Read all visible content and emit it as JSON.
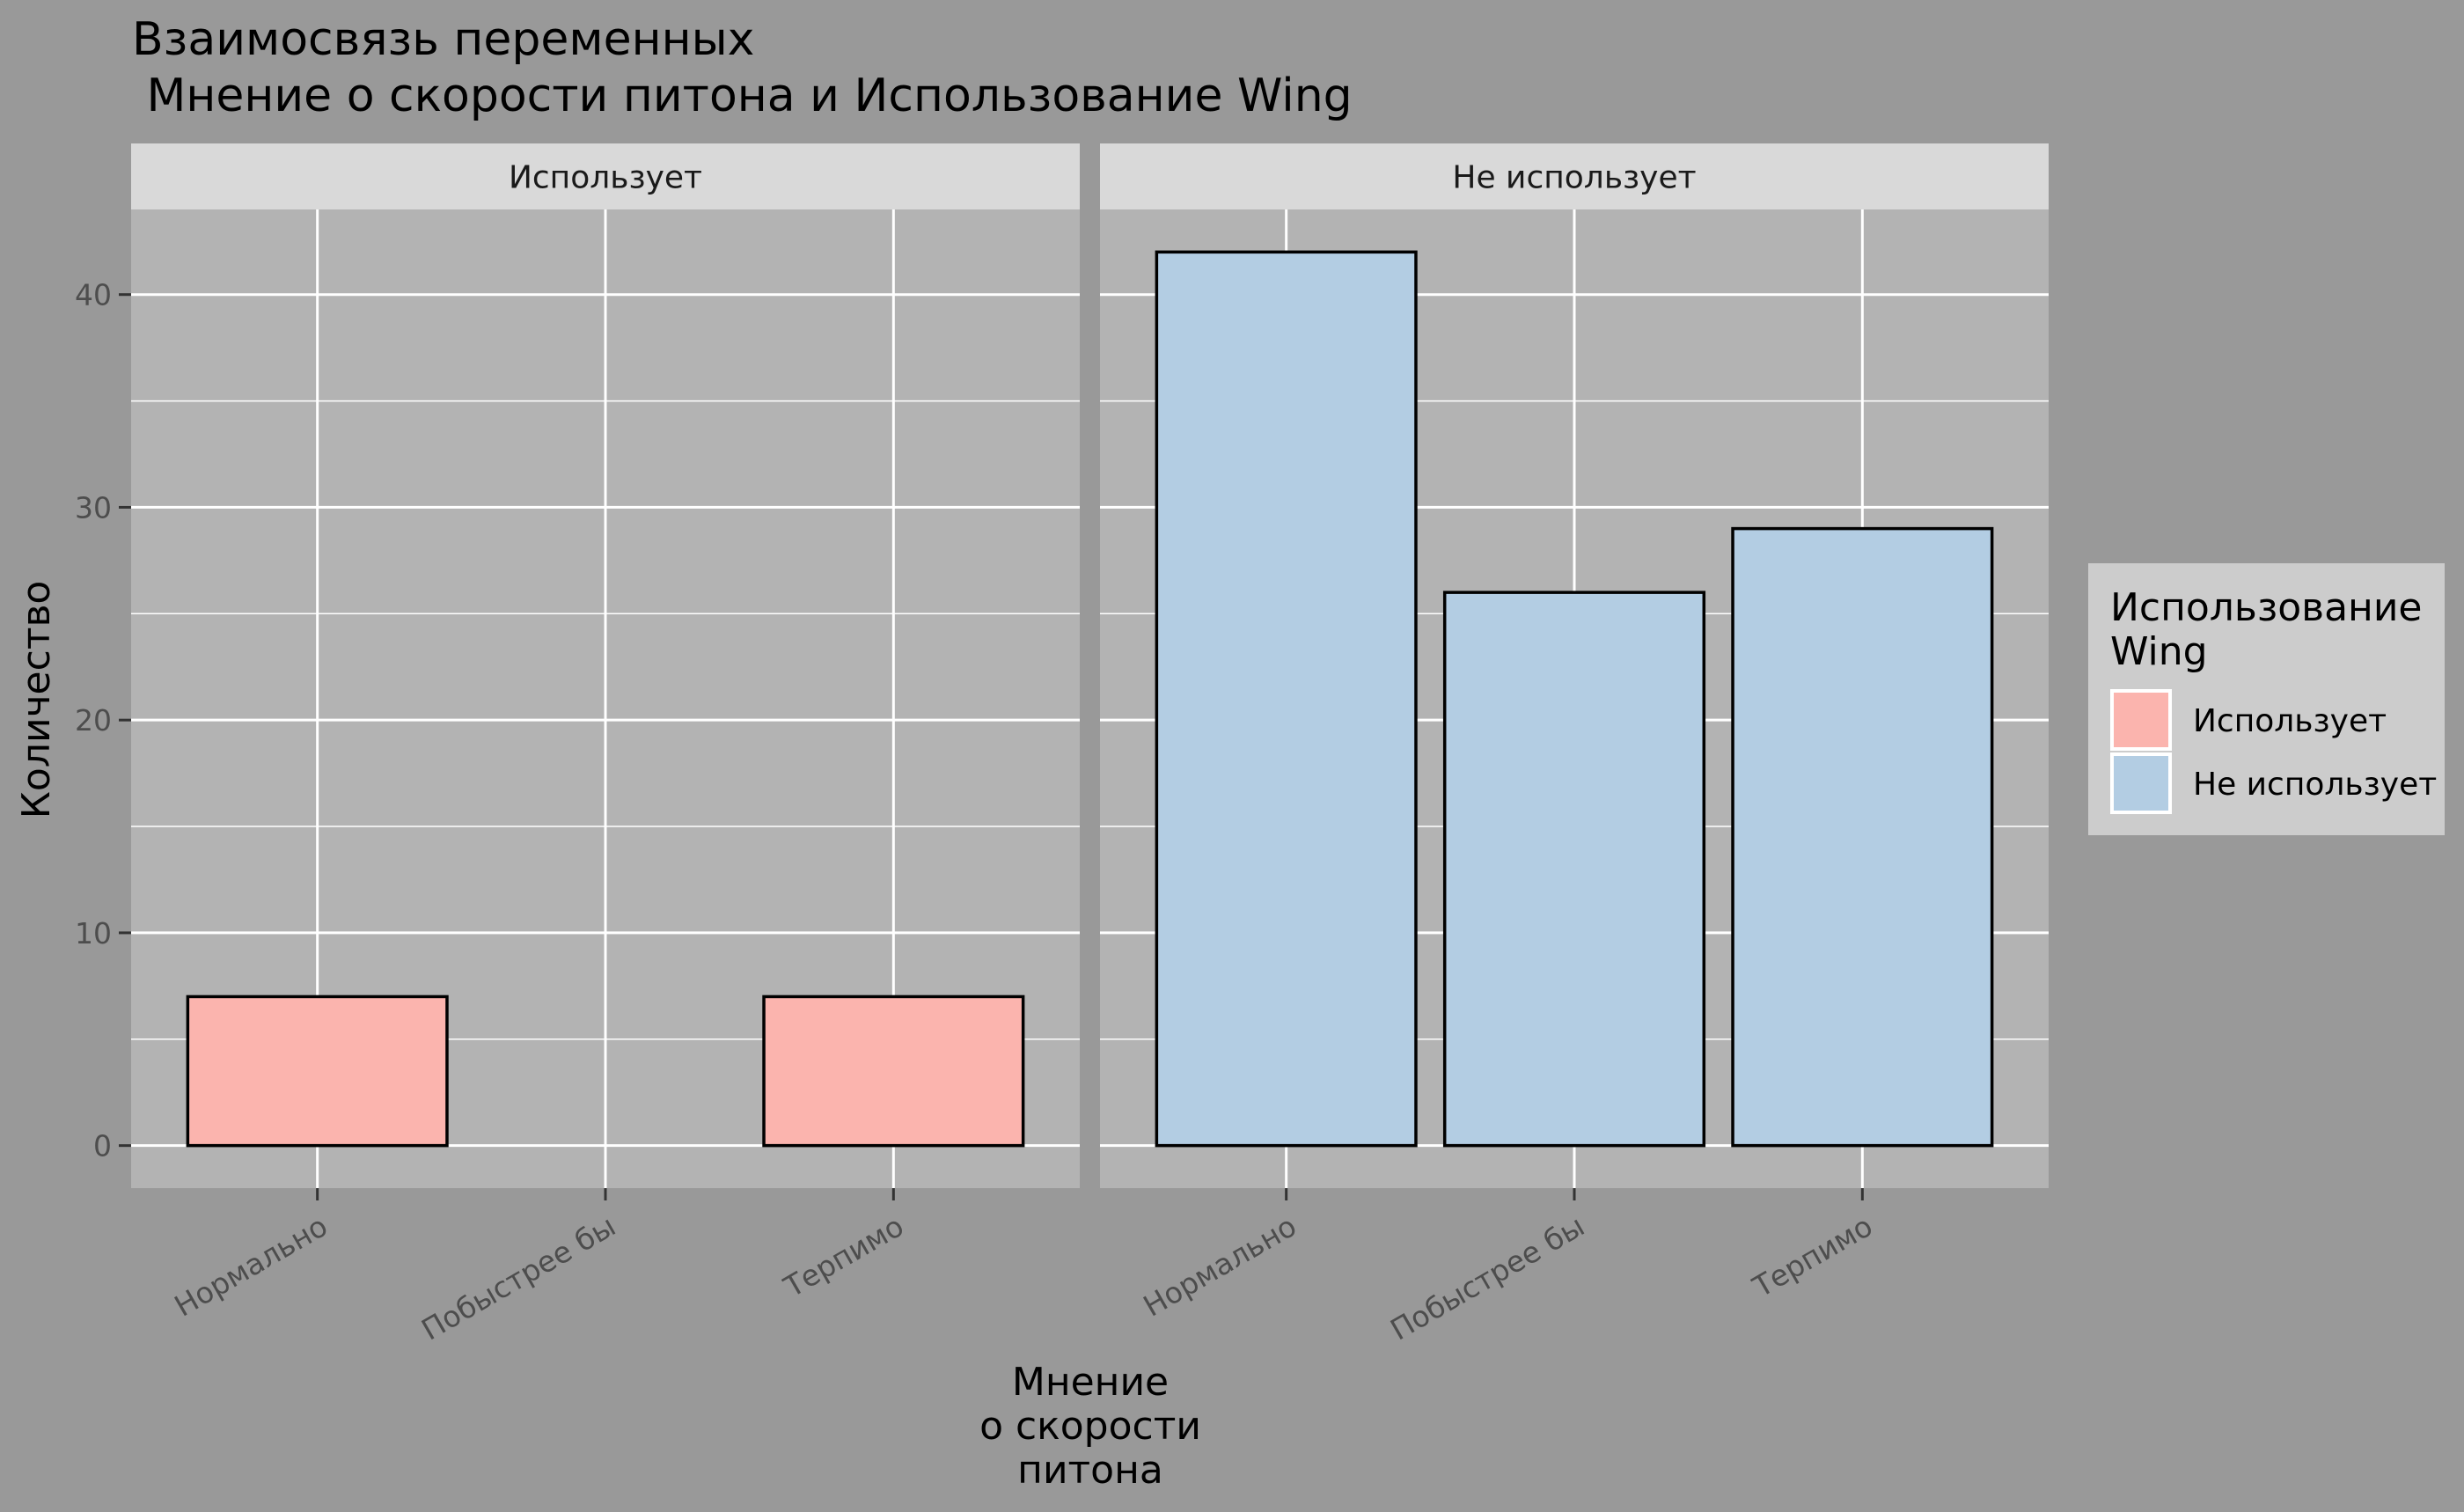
{
  "chart_data": {
    "type": "bar",
    "title_lines": [
      "Взаимосвязь переменных",
      " Мнение о скорости питона и Использование Wing"
    ],
    "facets": [
      {
        "label": "Использует",
        "categories": [
          "Нормально",
          "Побыстрее бы",
          "Терпимо"
        ],
        "values": [
          7,
          0,
          7
        ],
        "series": "Использует"
      },
      {
        "label": "Не использует",
        "categories": [
          "Нормально",
          "Побыстрее бы",
          "Терпимо"
        ],
        "values": [
          42,
          26,
          29
        ],
        "series": "Не использует"
      }
    ],
    "ylabel": "Количество",
    "xlabel_lines": [
      "Мнение",
      "о скорости",
      "питона"
    ],
    "ylim": [
      -2,
      44
    ],
    "y_ticks": [
      0,
      10,
      20,
      30,
      40
    ],
    "legend": {
      "title_lines": [
        "Использование",
        "Wing"
      ],
      "placement": "right",
      "items": [
        {
          "label": "Использует",
          "color": "#FBB4AE"
        },
        {
          "label": "Не использует",
          "color": "#B3CDE3"
        }
      ]
    },
    "grid": true,
    "colors": {
      "background": "#999999",
      "panel": "#B3B3B3",
      "strip": "#D9D9D9",
      "grid": "#FFFFFF",
      "legend_bg": "#CCCCCC",
      "bar_outline": "#000000"
    }
  }
}
